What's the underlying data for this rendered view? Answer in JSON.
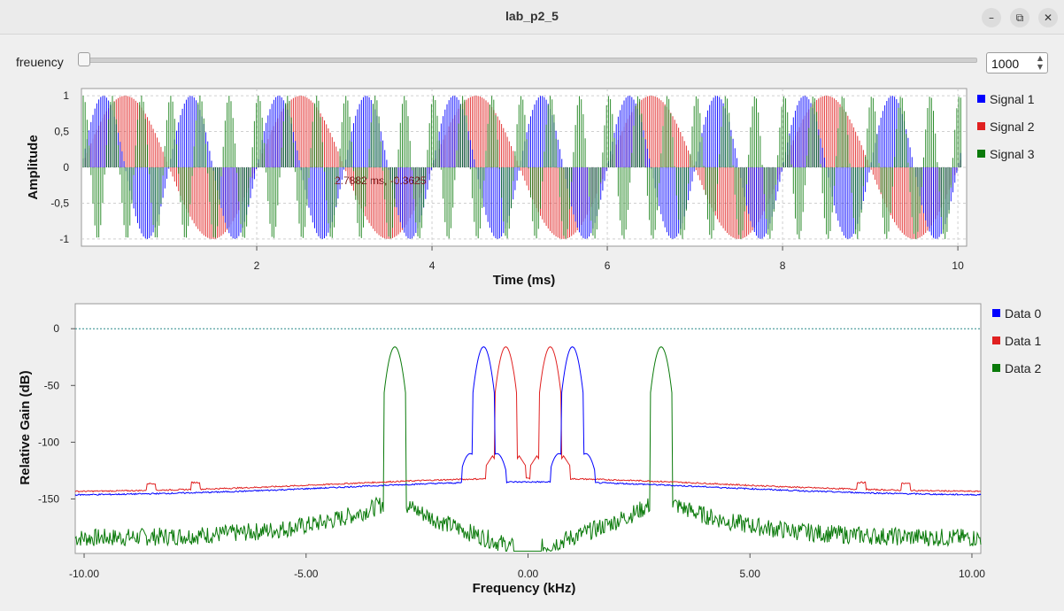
{
  "window": {
    "title": "lab_p2_5",
    "minimize_icon": "minimize-icon",
    "maximize_icon": "restore-icon",
    "close_icon": "close-icon"
  },
  "controls": {
    "slider_label": "freuency",
    "slider_value": 1000,
    "spin_value": "1000"
  },
  "colors": {
    "signal1": "#0000ff",
    "signal2": "#e02020",
    "signal3": "#0a7a0a",
    "accent": "#1a1aff"
  },
  "time_plot": {
    "ylabel": "Amplitude",
    "xlabel": "Time (ms)",
    "yticks": [
      "1",
      "0,5",
      "0",
      "-0,5",
      "-1"
    ],
    "xticks": [
      "2",
      "4",
      "6",
      "8",
      "10"
    ],
    "legend": [
      "Signal 1",
      "Signal 2",
      "Signal 3"
    ],
    "cursor_readout": "2.7882 ms, -0.3625"
  },
  "freq_plot": {
    "ylabel": "Relative Gain (dB)",
    "xlabel": "Frequency (kHz)",
    "yticks": [
      "0",
      "-50",
      "-100",
      "-150"
    ],
    "xticks": [
      "-10.00",
      "-5.00",
      "0.00",
      "5.00",
      "10.00"
    ],
    "legend": [
      "Data 0",
      "Data 1",
      "Data 2"
    ]
  },
  "chart_data": [
    {
      "type": "line",
      "ylabel": "Amplitude",
      "xlabel": "Time (ms)",
      "xlim": [
        0,
        10.1
      ],
      "ylim": [
        -1.1,
        1.1
      ],
      "series": [
        {
          "name": "Signal 1",
          "frequency_khz": 1.0,
          "amplitude": 1
        },
        {
          "name": "Signal 2",
          "frequency_khz": 0.5,
          "amplitude": 1
        },
        {
          "name": "Signal 3",
          "frequency_khz": 3.0,
          "amplitude": 1
        }
      ],
      "grid": true,
      "legend": "right"
    },
    {
      "type": "line",
      "ylabel": "Relative Gain (dB)",
      "xlabel": "Frequency (kHz)",
      "xlim": [
        -10.2,
        10.2
      ],
      "ylim": [
        -198,
        22
      ],
      "series": [
        {
          "name": "Data 0",
          "peaks_khz": [
            -1.0,
            1.0
          ],
          "peak_db": -16,
          "floor_db": -147
        },
        {
          "name": "Data 1",
          "peaks_khz": [
            -0.5,
            0.5
          ],
          "peak_db": -16,
          "floor_db": -144
        },
        {
          "name": "Data 2",
          "peaks_khz": [
            -3.0,
            3.0
          ],
          "peak_db": -16,
          "floor_db": -185
        }
      ],
      "reference_line_db": 0,
      "legend": "right"
    }
  ]
}
